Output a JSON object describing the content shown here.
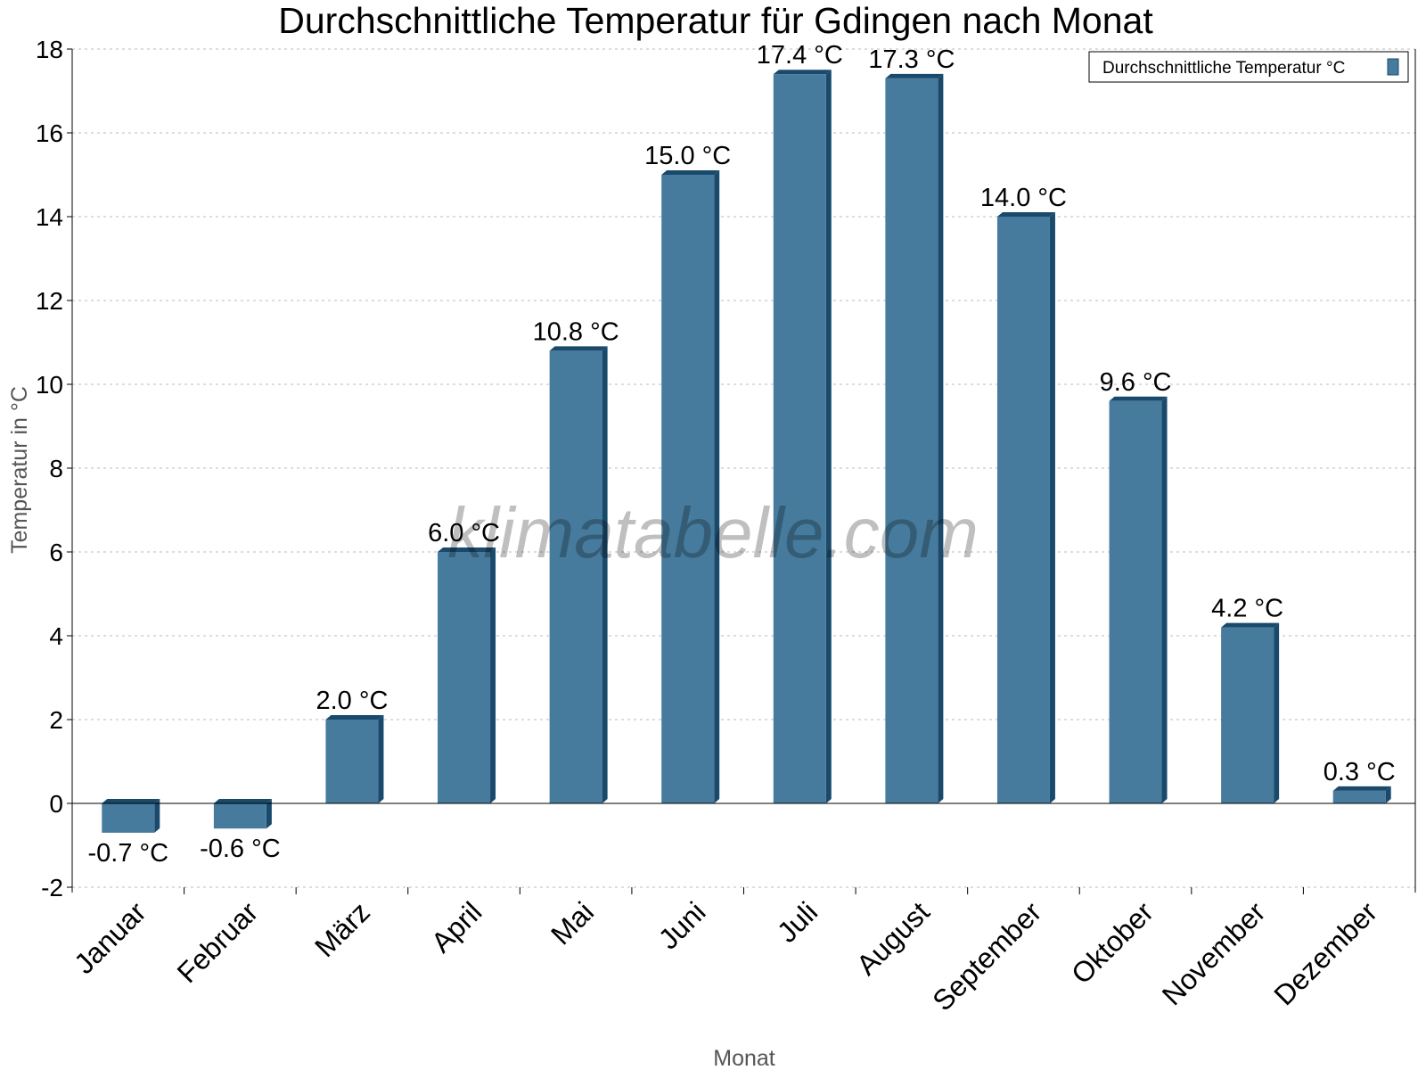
{
  "chart_data": {
    "type": "bar",
    "title": "Durchschnittliche Temperatur für Gdingen nach Monat",
    "xlabel": "Monat",
    "ylabel": "Temperatur in °C",
    "ylim": [
      -2,
      18
    ],
    "yticks": [
      -2,
      0,
      2,
      4,
      6,
      8,
      10,
      12,
      14,
      16,
      18
    ],
    "grid": true,
    "legend_position": "top-right",
    "categories": [
      "Januar",
      "Februar",
      "März",
      "April",
      "Mai",
      "Juni",
      "Juli",
      "August",
      "September",
      "Oktober",
      "November",
      "Dezember"
    ],
    "series": [
      {
        "name": "Durchschnittliche Temperatur °C",
        "color": "#467b9d",
        "values": [
          -0.7,
          -0.6,
          2.0,
          6.0,
          10.8,
          15.0,
          17.4,
          17.3,
          14.0,
          9.6,
          4.2,
          0.3
        ]
      }
    ],
    "data_labels": [
      "-0.7 °C",
      "-0.6 °C",
      "2.0 °C",
      "6.0 °C",
      "10.8 °C",
      "15.0 °C",
      "17.4 °C",
      "17.3 °C",
      "14.0 °C",
      "9.6 °C",
      "4.2 °C",
      "0.3 °C"
    ],
    "watermark": "klimatabelle.com"
  }
}
